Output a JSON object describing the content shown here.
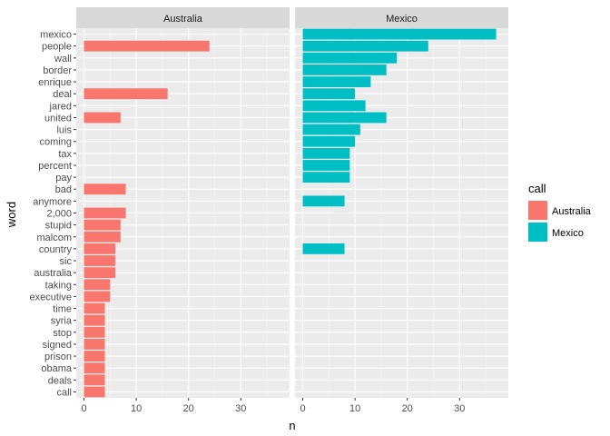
{
  "chart_data": {
    "type": "bar",
    "orientation": "horizontal",
    "xlabel": "n",
    "ylabel": "word",
    "xlim": [
      0,
      38
    ],
    "x_ticks": [
      0,
      10,
      20,
      30
    ],
    "grid": true,
    "legend_placement": "right",
    "legend": {
      "title": "call",
      "entries": [
        {
          "label": "Australia",
          "color": "#F8766D"
        },
        {
          "label": "Mexico",
          "color": "#00BFC4"
        }
      ]
    },
    "categories": [
      "mexico",
      "people",
      "wall",
      "border",
      "enrique",
      "deal",
      "jared",
      "united",
      "luis",
      "coming",
      "tax",
      "percent",
      "pay",
      "bad",
      "anymore",
      "2,000",
      "stupid",
      "malcom",
      "country",
      "sic",
      "australia",
      "taking",
      "executive",
      "time",
      "syria",
      "stop",
      "signed",
      "prison",
      "obama",
      "deals",
      "call"
    ],
    "panels": [
      {
        "name": "Australia",
        "color": "#F8766D",
        "values": [
          0,
          24,
          0,
          0,
          0,
          16,
          0,
          7,
          0,
          0,
          0,
          0,
          0,
          8,
          0,
          8,
          7,
          7,
          6,
          6,
          6,
          5,
          5,
          4,
          4,
          4,
          4,
          4,
          4,
          4,
          4
        ]
      },
      {
        "name": "Mexico",
        "color": "#00BFC4",
        "values": [
          37,
          24,
          18,
          16,
          13,
          10,
          12,
          16,
          11,
          10,
          9,
          9,
          9,
          0,
          8,
          0,
          0,
          0,
          8,
          0,
          0,
          0,
          0,
          0,
          0,
          0,
          0,
          0,
          0,
          0,
          0
        ]
      }
    ]
  },
  "colors": {
    "panel_background": "#EBEBEB",
    "strip_background": "#D9D9D9",
    "grid_major": "#FFFFFF",
    "grid_minor": "#F5F5F5"
  }
}
